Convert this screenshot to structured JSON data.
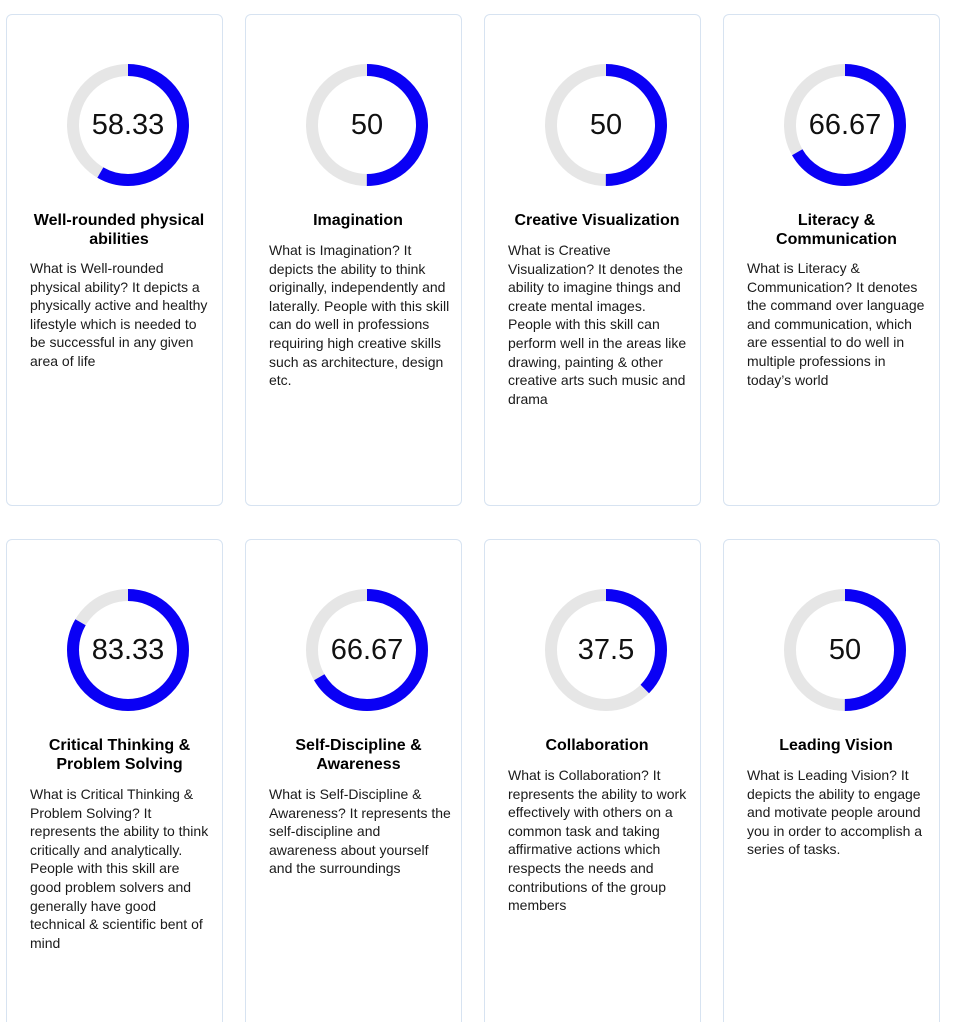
{
  "colors": {
    "ring_progress": "#0a00f5",
    "ring_track": "#e6e6e6",
    "card_border": "#d7e3f1"
  },
  "cards": [
    {
      "value": 58.33,
      "value_label": "58.33",
      "title": "Well-rounded physical abilities",
      "description": "What is Well-rounded physical ability? It depicts a physically active and healthy lifestyle which is needed to be successful in any given area of life"
    },
    {
      "value": 50,
      "value_label": "50",
      "title": "Imagination",
      "description": "What is Imagination? It depicts the ability to think originally, independently and laterally. People with this skill can do well in professions requiring high creative skills such as architecture, design etc."
    },
    {
      "value": 50,
      "value_label": "50",
      "title": "Creative Visualization",
      "description": "What is Creative Visualization? It denotes the ability to imagine things and create mental images. People with this skill can perform well in the areas like drawing, painting & other creative arts such music and drama"
    },
    {
      "value": 66.67,
      "value_label": "66.67",
      "title": "Literacy & Communication",
      "description": "What is Literacy & Communication? It denotes the command over language and communication, which are essential to do well in multiple professions in today’s world"
    },
    {
      "value": 83.33,
      "value_label": "83.33",
      "title": "Critical Thinking & Problem Solving",
      "description": "What is Critical Thinking & Problem Solving? It represents the ability to think critically and analytically. People with this skill are good problem solvers and generally have good technical & scientific bent of mind"
    },
    {
      "value": 66.67,
      "value_label": "66.67",
      "title": "Self-Discipline & Awareness",
      "description": "What is Self-Discipline & Awareness? It represents the self-discipline and awareness about yourself and the surroundings"
    },
    {
      "value": 37.5,
      "value_label": "37.5",
      "title": "Collaboration",
      "description": "What is Collaboration? It represents the ability to work effectively with others on a common task and taking affirmative actions which respects the needs and contributions of the group members"
    },
    {
      "value": 50,
      "value_label": "50",
      "title": "Leading Vision",
      "description": "What is Leading Vision? It depicts the ability to engage and motivate people around you in order to accomplish a series of tasks."
    }
  ]
}
